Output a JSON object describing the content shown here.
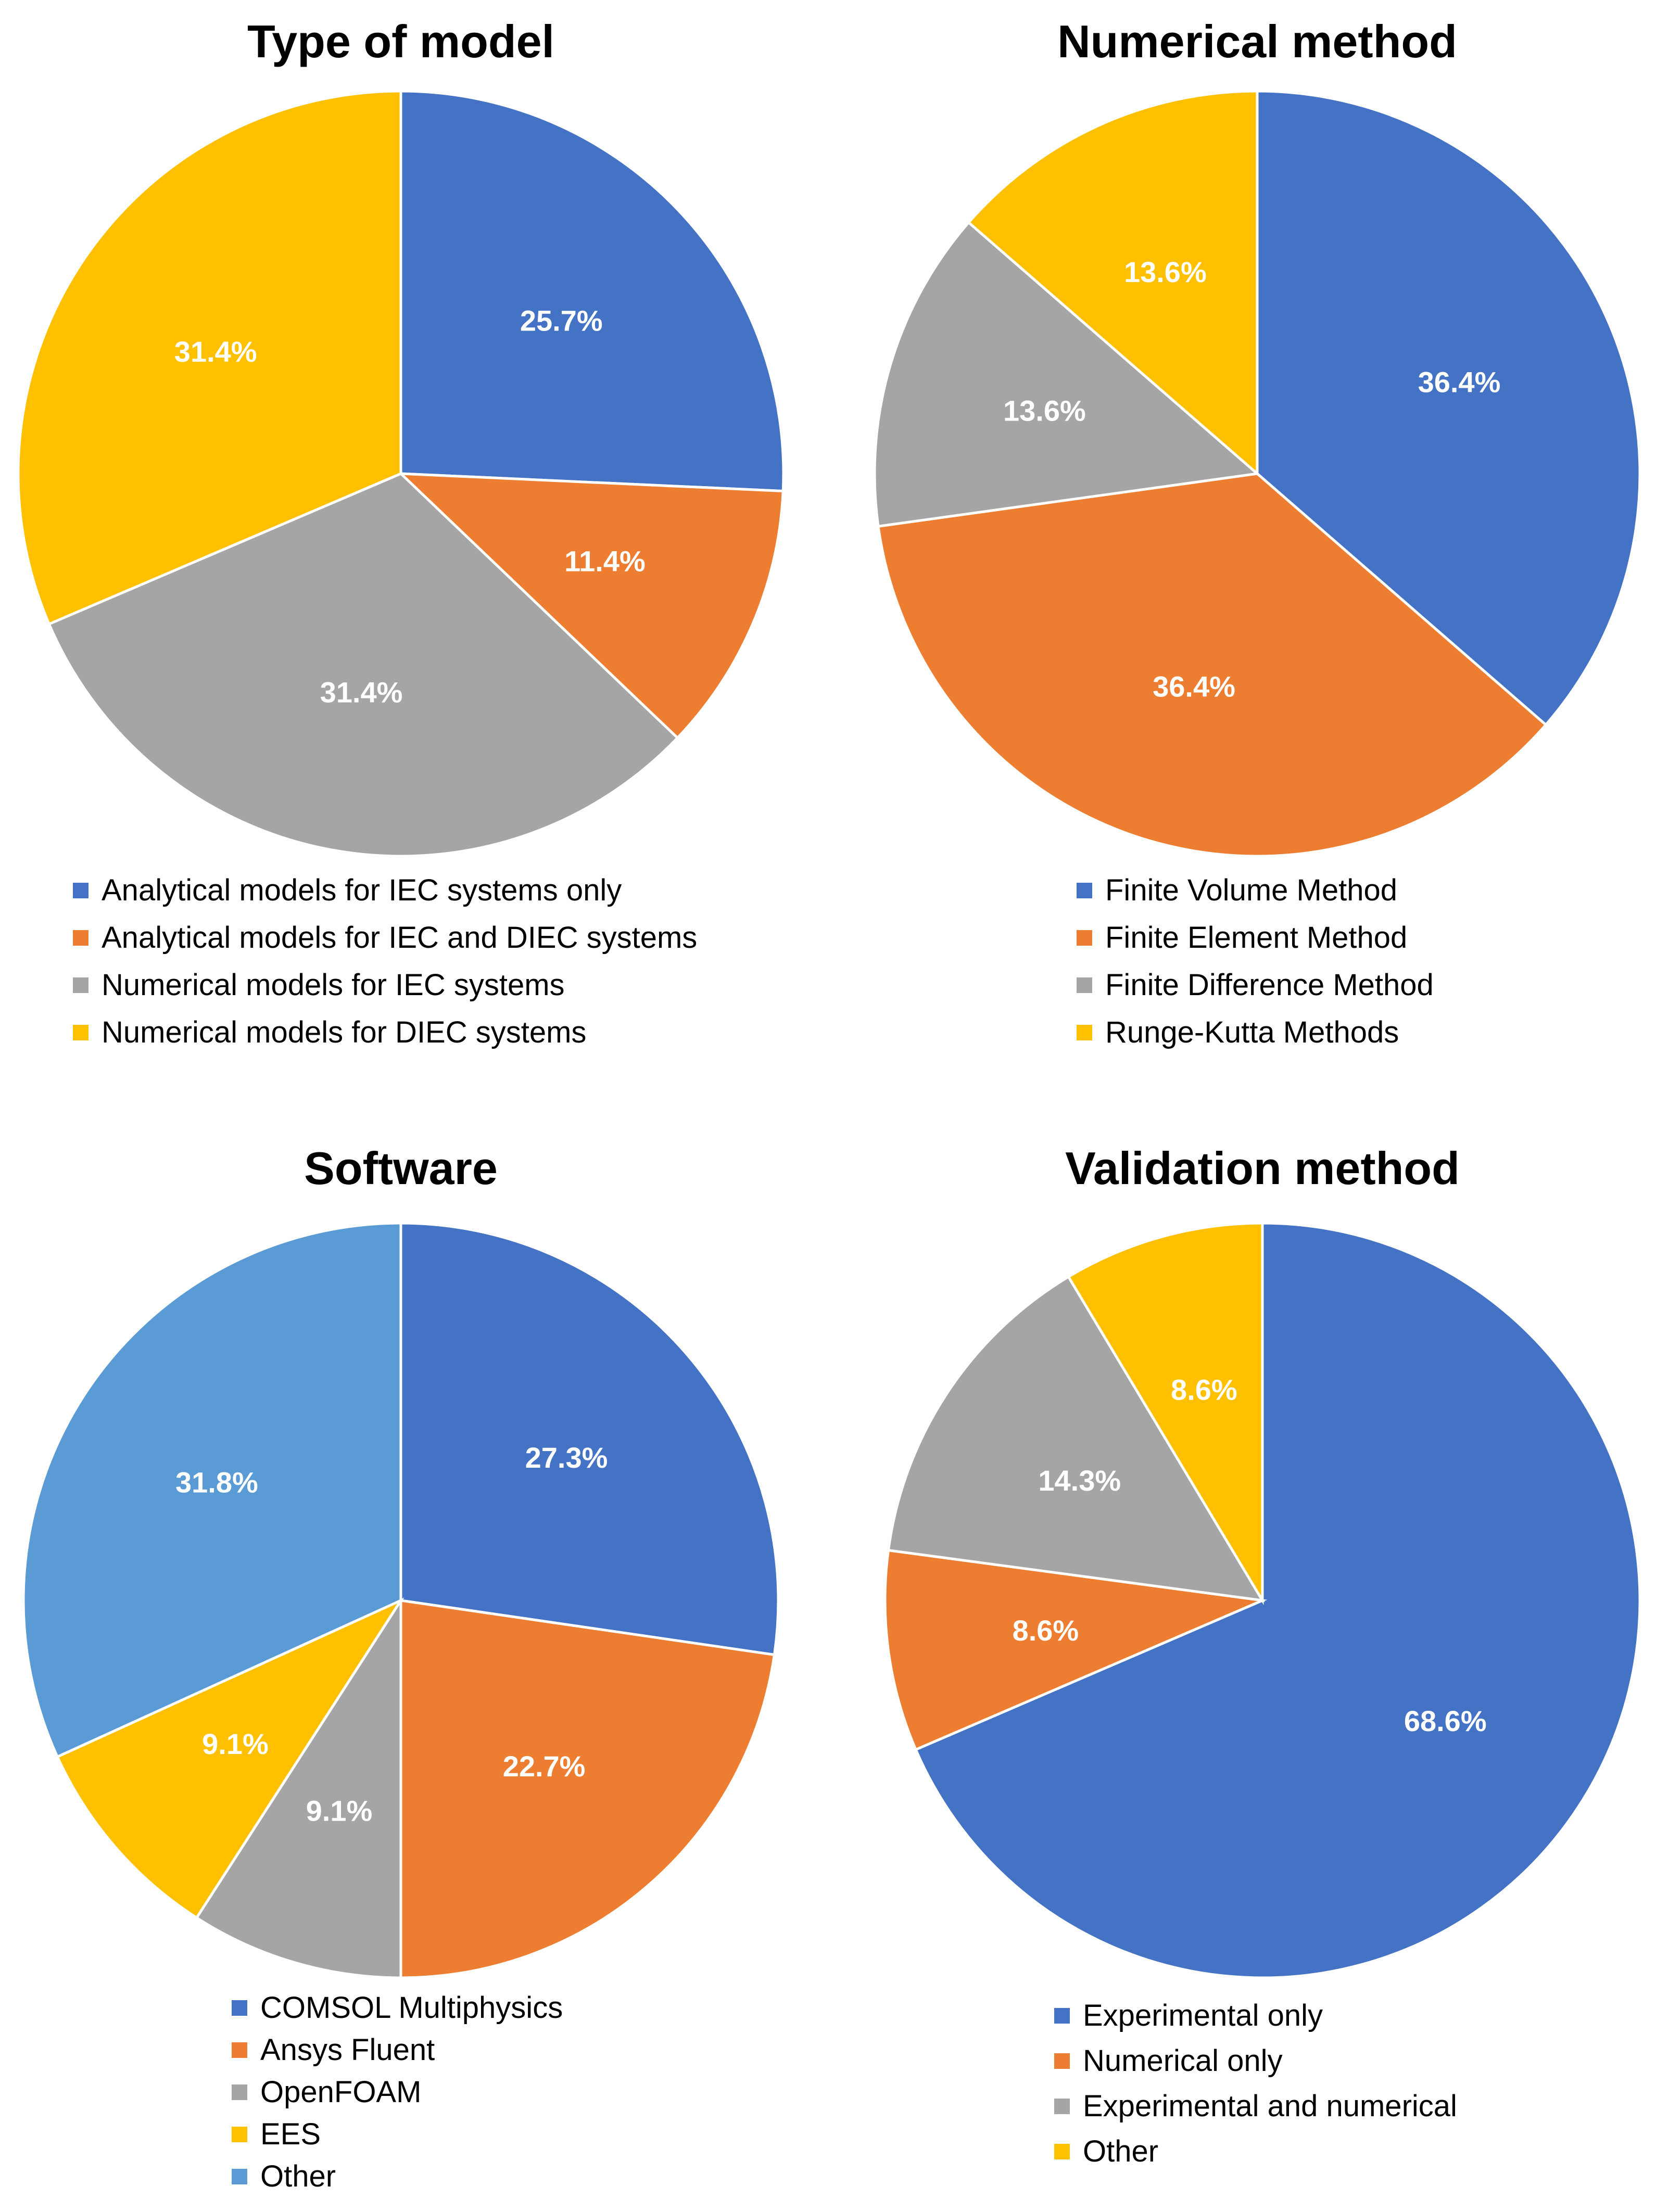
{
  "chart_data": [
    {
      "type": "pie",
      "title": "Type of model",
      "slices": [
        {
          "label": "Analytical models for IEC systems only",
          "value": 25.7,
          "display": "25.7%",
          "color": "#4472C4"
        },
        {
          "label": "Analytical models for IEC and DIEC systems",
          "value": 11.4,
          "display": "11.4%",
          "color": "#ED7D31"
        },
        {
          "label": "Numerical models for IEC systems",
          "value": 31.4,
          "display": "31.4%",
          "color": "#A5A5A5"
        },
        {
          "label": "Numerical models for DIEC systems",
          "value": 31.4,
          "display": "31.4%",
          "color": "#FFC000"
        }
      ]
    },
    {
      "type": "pie",
      "title": "Numerical method",
      "slices": [
        {
          "label": "Finite Volume Method",
          "value": 36.4,
          "display": "36.4%",
          "color": "#4472C4"
        },
        {
          "label": "Finite Element Method",
          "value": 36.4,
          "display": "36.4%",
          "color": "#ED7D31"
        },
        {
          "label": "Finite Difference Method",
          "value": 13.6,
          "display": "13.6%",
          "color": "#A5A5A5"
        },
        {
          "label": "Runge-Kutta Methods",
          "value": 13.6,
          "display": "13.6%",
          "color": "#FFC000"
        }
      ]
    },
    {
      "type": "pie",
      "title": "Software",
      "slices": [
        {
          "label": "COMSOL Multiphysics",
          "value": 27.3,
          "display": "27.3%",
          "color": "#4472C4"
        },
        {
          "label": "Ansys Fluent",
          "value": 22.7,
          "display": "22.7%",
          "color": "#ED7D31"
        },
        {
          "label": "OpenFOAM",
          "value": 9.1,
          "display": "9.1%",
          "color": "#A5A5A5"
        },
        {
          "label": "EES",
          "value": 9.1,
          "display": "9.1%",
          "color": "#FFC000"
        },
        {
          "label": "Other",
          "value": 31.8,
          "display": "31.8%",
          "color": "#5B9BD5"
        }
      ]
    },
    {
      "type": "pie",
      "title": "Validation method",
      "slices": [
        {
          "label": "Experimental only",
          "value": 68.6,
          "display": "68.6%",
          "color": "#4472C4"
        },
        {
          "label": "Numerical only",
          "value": 8.6,
          "display": "8.6%",
          "color": "#ED7D31"
        },
        {
          "label": "Experimental and numerical",
          "value": 14.3,
          "display": "14.3%",
          "color": "#A5A5A5"
        },
        {
          "label": "Other",
          "value": 8.6,
          "display": "8.6%",
          "color": "#FFC000"
        }
      ]
    }
  ]
}
